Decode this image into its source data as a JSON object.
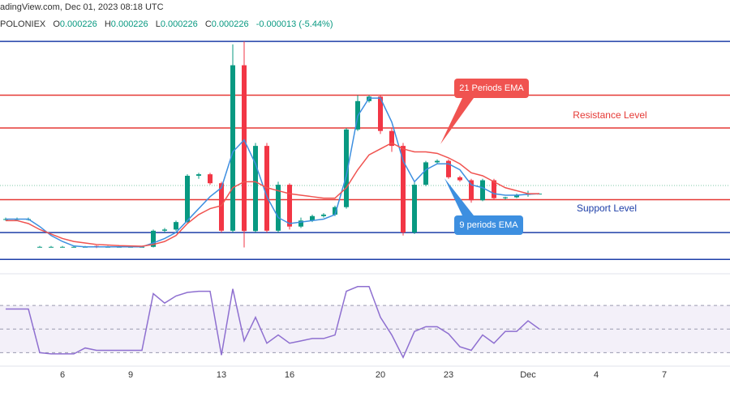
{
  "header": {
    "source": "adingView.com, Dec 01, 2023 08:18 UTC",
    "symbol": "POLONIEX",
    "ohlc": [
      {
        "label": "O",
        "value": "0.000226"
      },
      {
        "label": "H",
        "value": "0.000226"
      },
      {
        "label": "L",
        "value": "0.000226"
      },
      {
        "label": "C",
        "value": "0.000226"
      }
    ],
    "change": "-0.000013 (-5.44%)"
  },
  "chart_data": {
    "type": "candlestick",
    "categories": [
      null,
      null,
      null,
      null,
      null,
      "6",
      null,
      null,
      null,
      null,
      null,
      "9",
      null,
      null,
      null,
      null,
      null,
      null,
      null,
      "13",
      null,
      null,
      null,
      null,
      null,
      "16",
      null,
      null,
      null,
      null,
      null,
      null,
      null,
      "20",
      null,
      null,
      null,
      null,
      null,
      "23",
      null,
      null,
      null,
      null,
      null,
      null,
      "Dec",
      null,
      null,
      null,
      null,
      null,
      "4",
      null,
      null,
      null,
      null,
      null,
      "7",
      null,
      null,
      null,
      null,
      null
    ],
    "open": [
      0.0002175,
      0.0002175,
      0.0002175,
      0.0002082,
      0.0002082,
      0.0002082,
      0.0002082,
      0.0002082,
      0.0002085,
      0.0002082,
      0.0002082,
      0.0002082,
      0.0002082,
      0.0002082,
      0.0002136,
      0.000214,
      0.0002165,
      0.000232,
      0.0002325,
      0.0002295,
      0.0002136,
      0.000269,
      0.0002135,
      0.000242,
      0.0002136,
      0.000229,
      0.000215,
      0.000217,
      0.0002185,
      0.000219,
      0.0002215,
      0.0002475,
      0.000257,
      0.0002585,
      0.000247,
      0.000242,
      0.000213,
      0.000229,
      0.0002365,
      0.000237,
      0.0002315,
      0.0002305,
      0.0002238,
      0.0002305,
      0.0002245,
      0.0002248,
      0.0002256,
      0.000226,
      null,
      null,
      null,
      null,
      null,
      null,
      null,
      null,
      null,
      null,
      null,
      null,
      null,
      null,
      null,
      null
    ],
    "high": [
      0.000218,
      0.000218,
      0.000218,
      0.0002085,
      0.0002085,
      0.0002085,
      0.0002085,
      0.0002085,
      0.0002087,
      0.0002085,
      0.0002085,
      0.0002085,
      0.0002085,
      0.000214,
      0.0002145,
      0.000217,
      0.0002325,
      0.000233,
      0.000233,
      0.00023,
      0.000276,
      0.000277,
      0.000243,
      0.000243,
      0.00023,
      0.0002295,
      0.000218,
      0.000219,
      0.0002195,
      0.000222,
      0.000248,
      0.000259,
      0.000259,
      0.000259,
      0.000248,
      0.000243,
      0.00023,
      0.000237,
      0.0002375,
      0.0002375,
      0.000232,
      0.000231,
      0.000231,
      0.000231,
      0.000225,
      0.000226,
      0.000227,
      0.000226,
      null,
      null,
      null,
      null,
      null,
      null,
      null,
      null,
      null,
      null,
      null,
      null,
      null,
      null,
      null,
      null
    ],
    "low": [
      0.000217,
      0.000217,
      0.000217,
      0.000208,
      0.000208,
      0.000208,
      0.000208,
      0.000208,
      0.0002078,
      0.000208,
      0.000208,
      0.000208,
      0.000208,
      0.000208,
      0.000213,
      0.0002135,
      0.000216,
      0.000231,
      0.000229,
      0.000213,
      0.000213,
      0.000208,
      0.000213,
      0.000213,
      0.000213,
      0.000214,
      0.0002145,
      0.0002165,
      0.000218,
      0.0002185,
      0.000221,
      0.000247,
      0.0002565,
      0.000246,
      0.00024,
      0.000212,
      0.0002125,
      0.0002285,
      0.000236,
      0.000231,
      0.00023,
      0.000223,
      0.0002235,
      0.000224,
      0.000224,
      0.0002245,
      0.000225,
      0.000226,
      null,
      null,
      null,
      null,
      null,
      null,
      null,
      null,
      null,
      null,
      null,
      null,
      null,
      null,
      null,
      null
    ],
    "close": [
      0.0002175,
      0.0002175,
      0.0002175,
      0.0002082,
      0.0002082,
      0.0002082,
      0.0002082,
      0.0002082,
      0.000208,
      0.0002082,
      0.0002082,
      0.0002082,
      0.0002082,
      0.0002136,
      0.000214,
      0.0002165,
      0.000232,
      0.0002325,
      0.0002295,
      0.0002136,
      0.000269,
      0.0002135,
      0.000242,
      0.0002136,
      0.000229,
      0.000215,
      0.000217,
      0.0002185,
      0.000219,
      0.0002215,
      0.0002475,
      0.000257,
      0.0002585,
      0.000247,
      0.000242,
      0.000213,
      0.000229,
      0.0002365,
      0.000237,
      0.0002315,
      0.0002305,
      0.0002238,
      0.0002305,
      0.0002245,
      0.0002248,
      0.0002256,
      0.000226,
      0.000226,
      null,
      null,
      null,
      null,
      null,
      null,
      null,
      null,
      null,
      null,
      null,
      null,
      null,
      null,
      null,
      null
    ],
    "up_color": "#089981",
    "down_color": "#f23645",
    "series": [
      {
        "name": "9 periods EMA",
        "color": "#3d8fe0",
        "values": [
          0.0002175,
          0.0002175,
          0.0002175,
          0.000215,
          0.000212,
          0.00021,
          0.0002085,
          0.0002082,
          0.0002082,
          0.0002082,
          0.0002082,
          0.0002082,
          0.0002082,
          0.0002095,
          0.000211,
          0.000213,
          0.000217,
          0.000221,
          0.000225,
          0.000228,
          0.00024,
          0.000244,
          0.000236,
          0.000225,
          0.000218,
          0.000216,
          0.0002165,
          0.000217,
          0.0002175,
          0.000219,
          0.000232,
          0.000252,
          0.000258,
          0.000258,
          0.00025,
          0.000237,
          0.00023,
          0.000234,
          0.000236,
          0.000236,
          0.000234,
          0.000229,
          0.000228,
          0.000226,
          0.0002255,
          0.0002255,
          0.0002258,
          0.000226,
          null,
          null,
          null,
          null,
          null,
          null,
          null,
          null,
          null,
          null,
          null,
          null,
          null,
          null,
          null,
          null
        ]
      },
      {
        "name": "21 Periods EMA",
        "color": "#f05350",
        "values": [
          0.000217,
          0.000217,
          0.000216,
          0.000214,
          0.0002125,
          0.000211,
          0.00021,
          0.0002095,
          0.000209,
          0.0002088,
          0.0002086,
          0.0002085,
          0.0002084,
          0.000209,
          0.00021,
          0.000212,
          0.000216,
          0.000219,
          0.000221,
          0.000222,
          0.000228,
          0.00023,
          0.00023,
          0.000228,
          0.000227,
          0.000226,
          0.0002255,
          0.000225,
          0.0002245,
          0.0002245,
          0.000228,
          0.000234,
          0.000239,
          0.000241,
          0.000243,
          0.000241,
          0.00024,
          0.00024,
          0.0002395,
          0.000238,
          0.000236,
          0.000233,
          0.000232,
          0.00023,
          0.000228,
          0.000227,
          0.000226,
          0.000226,
          null,
          null,
          null,
          null,
          null,
          null,
          null,
          null,
          null,
          null,
          null,
          null,
          null,
          null,
          null,
          null
        ]
      }
    ],
    "ylim": [
      0.0002,
      0.00028
    ],
    "levels": [
      {
        "value": 0.000277,
        "color": "#1e3fa8"
      },
      {
        "value": 0.000259,
        "color": "#e53935"
      },
      {
        "value": 0.000248,
        "color": "#e53935"
      },
      {
        "value": 0.000224,
        "color": "#e53935"
      },
      {
        "value": 0.000213,
        "color": "#1e3fa8"
      },
      {
        "value": 0.000204,
        "color": "#1e3fa8"
      }
    ],
    "annotations": [
      {
        "text": "Resistance Level",
        "color": "#e53935"
      },
      {
        "text": "Support Level",
        "color": "#1e3fa8"
      }
    ],
    "indicator": {
      "color": "#8e6fd0",
      "ylim": [
        20,
        92
      ],
      "yticks": [
        30,
        50,
        70
      ],
      "values": [
        67,
        67,
        67,
        30,
        29,
        29,
        29,
        34,
        32,
        32,
        32,
        32,
        32,
        80,
        72,
        78,
        81,
        82,
        82,
        28,
        84,
        40,
        60,
        38,
        45,
        38,
        40,
        42,
        42,
        45,
        82,
        86,
        86,
        60,
        45,
        26,
        48,
        52,
        52,
        46,
        35,
        32,
        45,
        38,
        48,
        48,
        57,
        50,
        null,
        null,
        null,
        null,
        null,
        null,
        null,
        null,
        null,
        null,
        null,
        null,
        null,
        null,
        null,
        null
      ]
    }
  }
}
